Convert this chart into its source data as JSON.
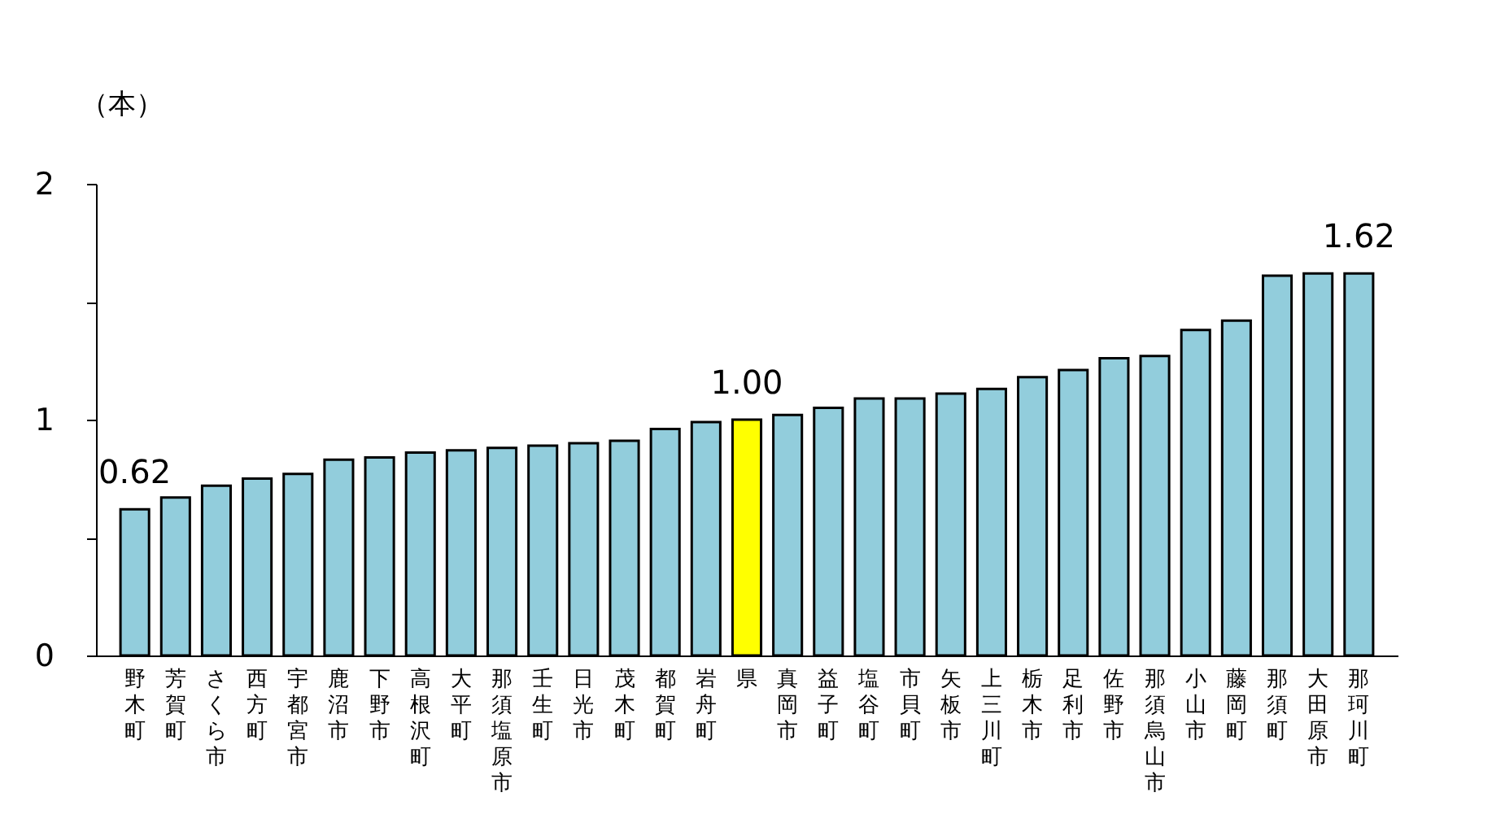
{
  "chart_data": {
    "type": "bar",
    "ylabel": "（本）",
    "categories": [
      "野木町",
      "芳賀町",
      "さくら市",
      "西方町",
      "宇都宮市",
      "鹿沼市",
      "下野市",
      "高根沢町",
      "大平町",
      "那須塩原市",
      "壬生町",
      "日光市",
      "茂木町",
      "都賀町",
      "岩舟町",
      "県",
      "真岡市",
      "益子町",
      "塩谷町",
      "市貝町",
      "矢板市",
      "上三川町",
      "栃木市",
      "足利市",
      "佐野市",
      "那須烏山市",
      "小山市",
      "藤岡町",
      "那須町",
      "大田原市",
      "那珂川町"
    ],
    "values": [
      0.62,
      0.67,
      0.72,
      0.75,
      0.77,
      0.83,
      0.84,
      0.86,
      0.87,
      0.88,
      0.89,
      0.9,
      0.91,
      0.96,
      0.99,
      1.0,
      1.02,
      1.05,
      1.09,
      1.09,
      1.11,
      1.13,
      1.18,
      1.21,
      1.26,
      1.27,
      1.38,
      1.42,
      1.61,
      1.62,
      1.62
    ],
    "colors": [
      "#92cddc",
      "#92cddc",
      "#92cddc",
      "#92cddc",
      "#92cddc",
      "#92cddc",
      "#92cddc",
      "#92cddc",
      "#92cddc",
      "#92cddc",
      "#92cddc",
      "#92cddc",
      "#92cddc",
      "#92cddc",
      "#92cddc",
      "#ffff00",
      "#92cddc",
      "#92cddc",
      "#92cddc",
      "#92cddc",
      "#92cddc",
      "#92cddc",
      "#92cddc",
      "#92cddc",
      "#92cddc",
      "#92cddc",
      "#92cddc",
      "#92cddc",
      "#92cddc",
      "#92cddc",
      "#92cddc"
    ],
    "value_labels": [
      "0.62",
      null,
      null,
      null,
      null,
      null,
      null,
      null,
      null,
      null,
      null,
      null,
      null,
      null,
      null,
      "1.00",
      null,
      null,
      null,
      null,
      null,
      null,
      null,
      null,
      null,
      null,
      null,
      null,
      null,
      null,
      "1.62"
    ],
    "ylim": [
      0,
      2
    ],
    "yticks": [
      0,
      {
        "value": 0.5,
        "label": null
      },
      1,
      {
        "value": 1.5,
        "label": null
      },
      2
    ],
    "grid": false
  }
}
